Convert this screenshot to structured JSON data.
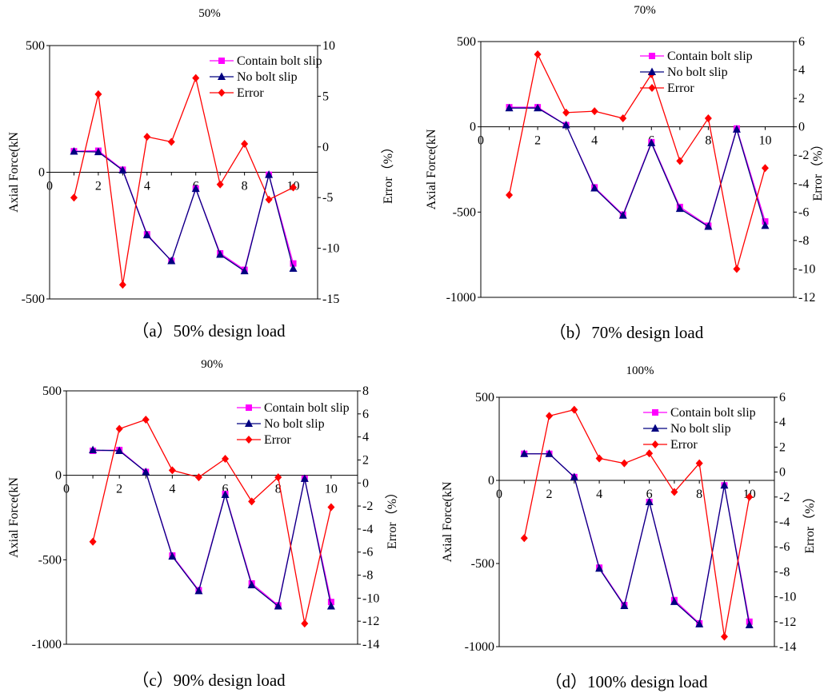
{
  "colors": {
    "contain_bolt_slip": "#ff00ff",
    "no_bolt_slip": "#000080",
    "error": "#ff0000",
    "axes": "#000000"
  },
  "chart_data": [
    {
      "type": "line",
      "panel": "a",
      "title": "50%",
      "caption": "（a）50% design load",
      "xlabel": "",
      "ylabel": "Axial Force(kN",
      "y2label": "Error（%）",
      "xlim": [
        0,
        11
      ],
      "xticks": [
        0,
        2,
        4,
        6,
        8,
        10
      ],
      "ylim": [
        -500,
        500
      ],
      "yticks": [
        -500,
        0,
        500
      ],
      "y2lim": [
        -15,
        10
      ],
      "y2ticks": [
        -15,
        -10,
        -5,
        0,
        5,
        10
      ],
      "x": [
        1,
        2,
        3,
        4,
        5,
        6,
        7,
        8,
        9,
        10
      ],
      "legend": "top-right",
      "series": [
        {
          "name": "Contain bolt slip",
          "axis": "left",
          "marker": "square",
          "values": [
            83,
            85,
            10,
            -245,
            -350,
            -65,
            -320,
            -385,
            -10,
            -360
          ]
        },
        {
          "name": "No bolt slip",
          "axis": "left",
          "marker": "triangle",
          "values": [
            82,
            80,
            8,
            -248,
            -350,
            -65,
            -325,
            -390,
            -10,
            -380
          ]
        },
        {
          "name": "Error",
          "axis": "right",
          "marker": "diamond",
          "values": [
            -5,
            5.2,
            -13.6,
            1,
            0.5,
            6.8,
            -3.7,
            0.3,
            -5.2,
            -4
          ]
        }
      ]
    },
    {
      "type": "line",
      "panel": "b",
      "title": "70%",
      "caption": "（b）70% design load",
      "xlabel": "",
      "ylabel": "Axial Force(kN",
      "y2label": "Error（%）",
      "xlim": [
        0,
        11
      ],
      "xticks": [
        0,
        2,
        4,
        6,
        8,
        10
      ],
      "ylim": [
        -1000,
        500
      ],
      "yticks": [
        -1000,
        -500,
        0,
        500
      ],
      "y2lim": [
        -12,
        6
      ],
      "y2ticks": [
        -12,
        -10,
        -8,
        -6,
        -4,
        -2,
        0,
        2,
        4,
        6
      ],
      "x": [
        1,
        2,
        3,
        4,
        5,
        6,
        7,
        8,
        9,
        10
      ],
      "legend": "top-right",
      "series": [
        {
          "name": "Contain bolt slip",
          "axis": "left",
          "marker": "square",
          "values": [
            115,
            115,
            10,
            -355,
            -515,
            -90,
            -470,
            -580,
            -10,
            -555
          ]
        },
        {
          "name": "No bolt slip",
          "axis": "left",
          "marker": "triangle",
          "values": [
            110,
            110,
            10,
            -360,
            -520,
            -95,
            -480,
            -585,
            -15,
            -580
          ]
        },
        {
          "name": "Error",
          "axis": "right",
          "marker": "diamond",
          "values": [
            -4.8,
            5.1,
            1,
            1.1,
            0.6,
            3.7,
            -2.4,
            0.6,
            -10,
            -2.9
          ]
        }
      ]
    },
    {
      "type": "line",
      "panel": "c",
      "title": "90%",
      "caption": "（c）90% design load",
      "xlabel": "",
      "ylabel": "Axial Force(kN",
      "y2label": "Error（%）",
      "xlim": [
        0,
        11
      ],
      "xticks": [
        0,
        2,
        4,
        6,
        8,
        10
      ],
      "ylim": [
        -1000,
        500
      ],
      "yticks": [
        -1000,
        -500,
        0,
        500
      ],
      "y2lim": [
        -14,
        8
      ],
      "y2ticks": [
        -14,
        -12,
        -10,
        -8,
        -6,
        -4,
        -2,
        0,
        2,
        4,
        6,
        8
      ],
      "x": [
        1,
        2,
        3,
        4,
        5,
        6,
        7,
        8,
        9,
        10
      ],
      "legend": "top-right",
      "series": [
        {
          "name": "Contain bolt slip",
          "axis": "left",
          "marker": "square",
          "values": [
            145,
            150,
            20,
            -475,
            -680,
            -110,
            -640,
            -770,
            -20,
            -750
          ]
        },
        {
          "name": "No bolt slip",
          "axis": "left",
          "marker": "triangle",
          "values": [
            150,
            145,
            20,
            -480,
            -685,
            -115,
            -650,
            -775,
            -20,
            -775
          ]
        },
        {
          "name": "Error",
          "axis": "right",
          "marker": "diamond",
          "values": [
            -5.1,
            4.7,
            5.5,
            1.1,
            0.5,
            2.1,
            -1.6,
            0.5,
            -12.2,
            -2.1
          ]
        }
      ]
    },
    {
      "type": "line",
      "panel": "d",
      "title": "100%",
      "caption": "（d）100% design load",
      "xlabel": "",
      "ylabel": "Axial Force(kN",
      "y2label": "Error（%）",
      "xlim": [
        0,
        11
      ],
      "xticks": [
        0,
        2,
        4,
        6,
        8,
        10
      ],
      "ylim": [
        -1000,
        500
      ],
      "yticks": [
        -1000,
        -500,
        0,
        500
      ],
      "y2lim": [
        -14,
        6
      ],
      "y2ticks": [
        -14,
        -12,
        -10,
        -8,
        -6,
        -4,
        -2,
        0,
        2,
        4,
        6
      ],
      "x": [
        1,
        2,
        3,
        4,
        5,
        6,
        7,
        8,
        9,
        10
      ],
      "legend": "top-right",
      "series": [
        {
          "name": "Contain bolt slip",
          "axis": "left",
          "marker": "square",
          "values": [
            160,
            160,
            20,
            -525,
            -750,
            -130,
            -720,
            -860,
            -30,
            -850
          ]
        },
        {
          "name": "No bolt slip",
          "axis": "left",
          "marker": "triangle",
          "values": [
            160,
            160,
            20,
            -530,
            -755,
            -130,
            -730,
            -865,
            -30,
            -870
          ]
        },
        {
          "name": "Error",
          "axis": "right",
          "marker": "diamond",
          "values": [
            -5.3,
            4.5,
            5,
            1.1,
            0.7,
            1.5,
            -1.6,
            0.7,
            -13.2,
            -2
          ]
        }
      ]
    }
  ]
}
